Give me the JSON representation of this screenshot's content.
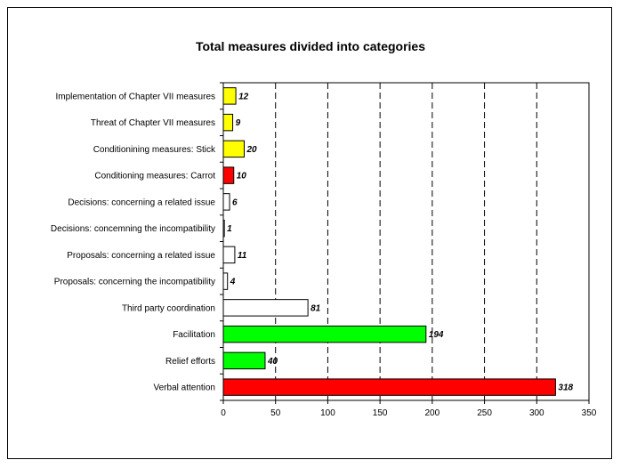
{
  "chart_data": {
    "type": "bar",
    "orientation": "horizontal",
    "title": "Total measures divided into categories",
    "xlabel": "",
    "ylabel": "",
    "xlim": [
      0,
      350
    ],
    "x_ticks": [
      0,
      50,
      100,
      150,
      200,
      250,
      300,
      350
    ],
    "grid": "vertical dashed",
    "legend": "none",
    "categories": [
      "Implementation of Chapter VII measures",
      "Threat of Chapter VII measures",
      "Conditionining measures: Stick",
      "Conditioning measures: Carrot",
      "Decisions: concerning a related issue",
      "Decisions: concemning the incompatibility",
      "Proposals: concerning a related issue",
      "Proposals: concerning the incompatibility",
      "Third party coordination",
      "Facilitation",
      "Relief efforts",
      "Verbal attention"
    ],
    "values": [
      12,
      9,
      20,
      10,
      6,
      1,
      11,
      4,
      81,
      194,
      40,
      318
    ],
    "colors": [
      "#ffff00",
      "#ffff00",
      "#ffff00",
      "#ff0000",
      "#ffffff",
      "#ffffff",
      "#ffffff",
      "#ffffff",
      "#ffffff",
      "#00ff00",
      "#00ff00",
      "#ff0000"
    ]
  }
}
